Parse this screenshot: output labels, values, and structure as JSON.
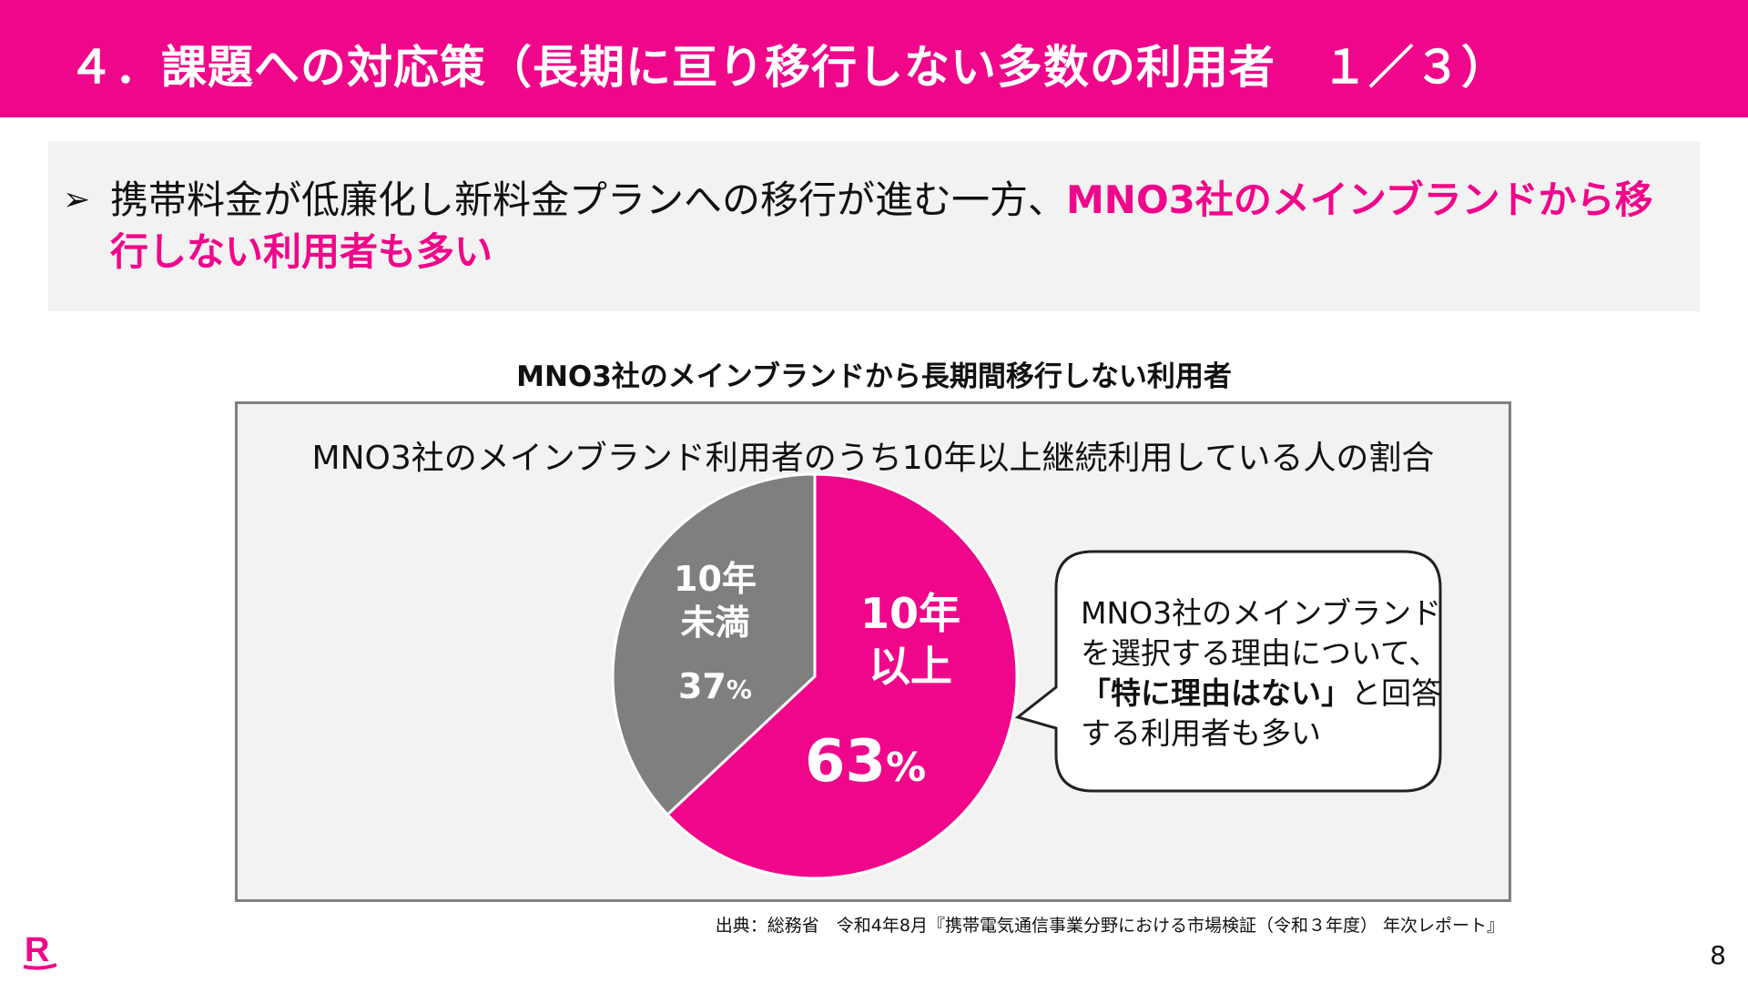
{
  "header": {
    "title": "４．課題への対応策（長期に亘り移行しない多数の利用者　１／３）"
  },
  "summary": {
    "bullet_icon": "arrowhead-bullet-icon",
    "text_normal": "携帯料金が低廉化し新料金プランへの移行が進む一方、",
    "text_highlight": "MNO3社のメインブランドから移行しない利用者も多い"
  },
  "chart_data": {
    "type": "pie",
    "title": "MNO3社のメインブランドから長期間移行しない利用者",
    "subtitle": "MNO3社のメインブランド利用者のうち10年以上継続利用している人の割合",
    "slices": [
      {
        "label_line1": "10年",
        "label_line2": "以上",
        "value": 63,
        "value_label": "63",
        "color": "#f0068a"
      },
      {
        "label_line1": "10年",
        "label_line2": "未満",
        "value": 37,
        "value_label": "37",
        "color": "#7f7f7f"
      }
    ],
    "percent_sign": "%",
    "start": "top",
    "direction": "clockwise"
  },
  "callout": {
    "line1": "MNO3社のメインブランド",
    "line2": "を選択する理由について、",
    "line3_bold": "「特に理由はない」",
    "line3_rest": "と回答",
    "line4": "する利用者も多い"
  },
  "footer": {
    "source": "出典：総務省　令和4年8月『携帯電気通信事業分野における市場検証（令和３年度） 年次レポート』",
    "page_number": "8",
    "logo_letter": "R",
    "brand_color": "#f0068a"
  }
}
